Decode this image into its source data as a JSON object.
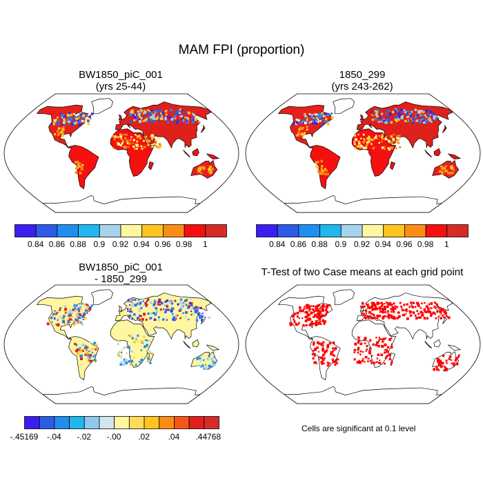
{
  "title": "MAM FPI (proportion)",
  "panels": [
    {
      "title_line1": "BW1850_piC_001",
      "title_line2": "(yrs 25-44)"
    },
    {
      "title_line1": "1850_299",
      "title_line2": "(yrs 243-262)"
    },
    {
      "title_line1": "BW1850_piC_001",
      "title_line2": "- 1850_299"
    },
    {
      "title_line1": "T-Test of two Case means at each grid point",
      "title_line2": ""
    }
  ],
  "colorbar_top": {
    "colors": [
      "#3b1ff0",
      "#2d5be6",
      "#1f8ef0",
      "#1fb7ee",
      "#a6d4ef",
      "#fff6a0",
      "#fec521",
      "#fb8d16",
      "#f5100f",
      "#d72b28"
    ],
    "labels": [
      "0.84",
      "0.86",
      "0.88",
      "0.9",
      "0.92",
      "0.94",
      "0.96",
      "0.98",
      "1"
    ]
  },
  "colorbar_diff": {
    "colors": [
      "#3b1ff0",
      "#2d5be6",
      "#1f8ef0",
      "#1fb7ee",
      "#8cc8ef",
      "#cfe6ef",
      "#fff6a0",
      "#fedc5a",
      "#fec521",
      "#fb8d16",
      "#f5541a",
      "#e0201a",
      "#d72b28"
    ],
    "labels": [
      "-.45169",
      "-.04",
      "-.02",
      "-.00",
      ".02",
      ".04",
      ".44768"
    ]
  },
  "significance_note": "Cells are significant at 0.1 level"
}
